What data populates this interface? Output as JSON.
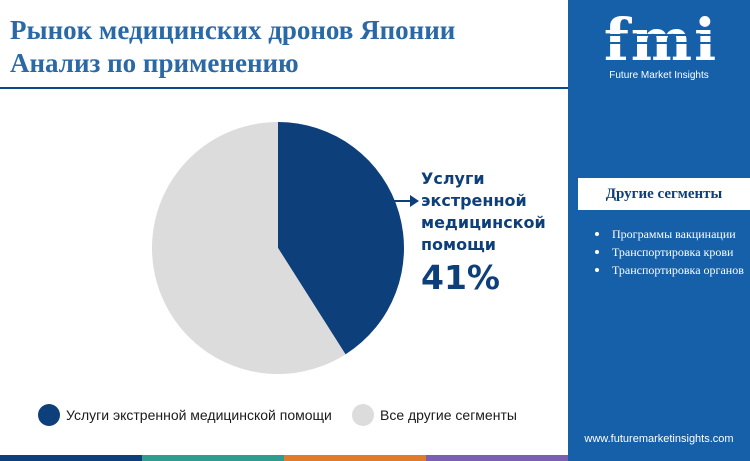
{
  "title": {
    "line1": "Рынок медицинских дронов Японии",
    "line2": "Анализ по применению"
  },
  "chart_data": {
    "type": "pie",
    "series": [
      {
        "name": "Услуги экстренной медицинской помощи",
        "value": 41,
        "color": "#0d3f7a"
      },
      {
        "name": "Все другие сегменты",
        "value": 59,
        "color": "#dcdcdc"
      }
    ],
    "legend_position": "bottom"
  },
  "callout": {
    "label_lines": [
      "Услуги",
      "экстренной",
      "медицинской",
      "помощи"
    ],
    "percent": "41%"
  },
  "legend": {
    "items": [
      {
        "label": "Услуги экстренной медицинской помощи",
        "color": "#0d3f7a"
      },
      {
        "label": "Все другие сегменты",
        "color": "#dcdcdc"
      }
    ]
  },
  "sidebar": {
    "logo_text": "fmi",
    "tagline": "Future Market Insights",
    "heading": "Другие сегменты",
    "items": [
      "Программы вакцинации",
      "Транспортировка крови",
      "Транспортировка органов"
    ],
    "website": "www.futuremarketinsights.com",
    "background": "#1560a8"
  },
  "bottom_bar_colors": [
    "#0d3f7a",
    "#2e9c8f",
    "#e07b2c",
    "#7b5fb0"
  ]
}
